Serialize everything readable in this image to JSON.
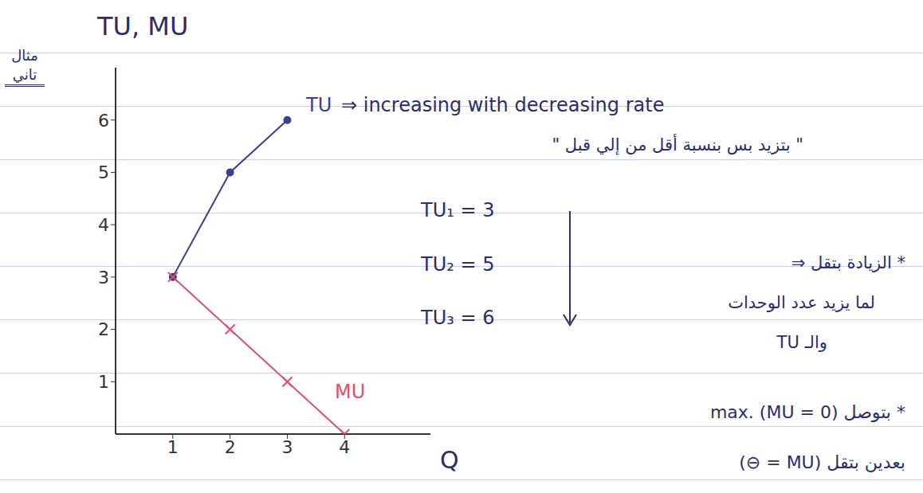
{
  "chart_data": {
    "type": "line",
    "title": "مثال تاني",
    "x_label": "Q",
    "y_label": "TU, MU",
    "x": [
      1,
      2,
      3,
      4
    ],
    "series": [
      {
        "name": "TU",
        "color": "#3b3f8c",
        "marker": "circle",
        "line_style": "solid",
        "values": [
          3,
          5,
          6,
          null
        ]
      },
      {
        "name": "MU",
        "color": "#e0506a",
        "marker": "x",
        "line_style": "solid",
        "values": [
          3,
          2,
          1,
          0
        ]
      }
    ],
    "xlim": [
      0,
      5.5
    ],
    "xticks": [
      1,
      2,
      3,
      4
    ],
    "ylim": [
      0,
      7
    ],
    "yticks": [
      1,
      2,
      3,
      4,
      5,
      6
    ],
    "grid": false,
    "annotations": [
      "⇒ increasing with decreasing rate",
      "\" بتزيد بس بنسبة أقل من إلي قبل \"",
      "TU₁ = 3",
      "TU₂ = 5",
      "TU₃ = 6",
      "* الزيادة بتقل ⇒",
      "لما يزيد عدد الوحدات",
      "والـ TU",
      "* بتوصل max. (MU = 0)",
      "بعدين بتقل (MU = ⊖)"
    ]
  }
}
